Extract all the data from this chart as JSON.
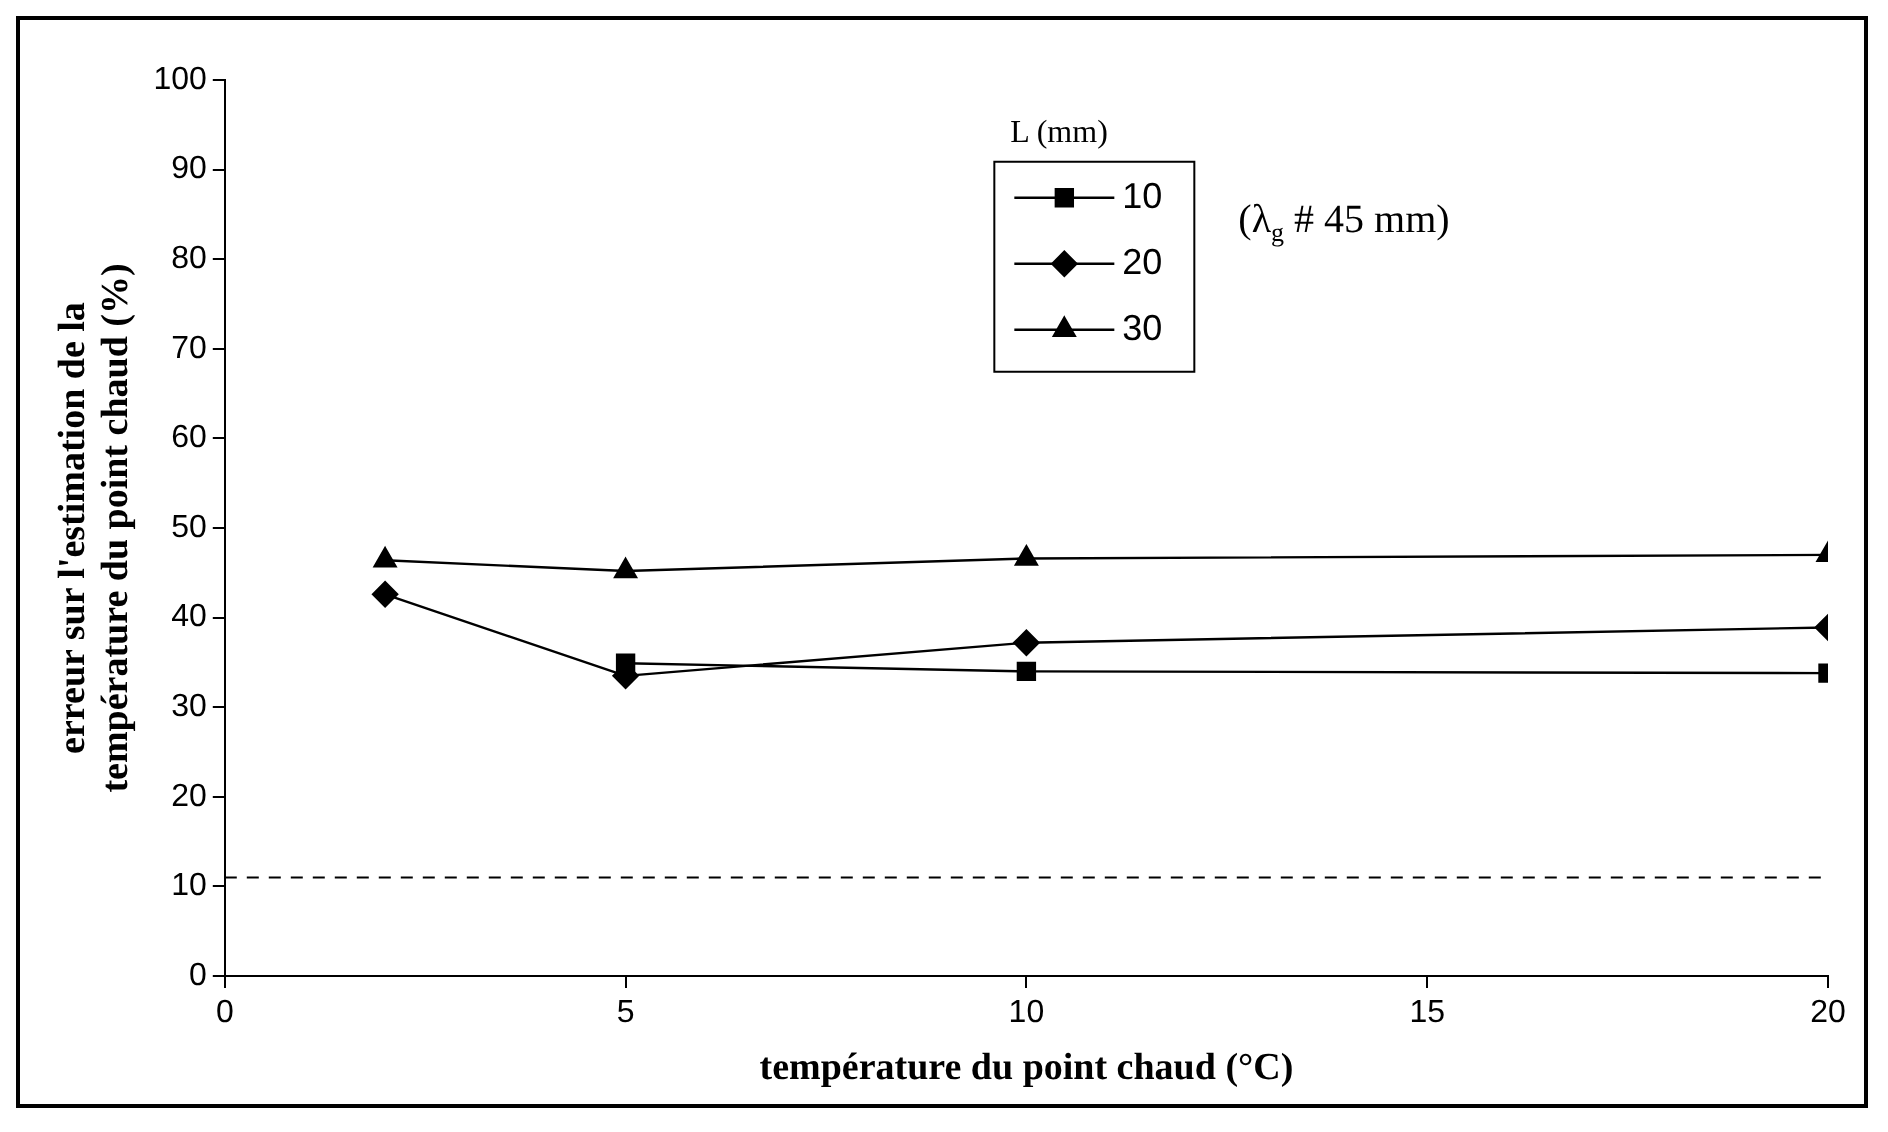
{
  "chart_data": {
    "type": "line",
    "xlabel": "température du point chaud (°C)",
    "ylabel": "erreur sur l'estimation de la température du point chaud (%)",
    "legend_title": "L (mm)",
    "legend": "top",
    "xlim": [
      0,
      20
    ],
    "xticks": [
      0,
      5,
      10,
      15,
      20
    ],
    "ylim": [
      0,
      100
    ],
    "yticks": [
      0,
      10,
      20,
      30,
      40,
      50,
      60,
      70,
      80,
      90,
      100
    ],
    "grid": false,
    "series": [
      {
        "name": "10",
        "color": "#000000",
        "marker": "square",
        "x": [
          5,
          10,
          20
        ],
        "values": [
          34.9,
          34.0,
          33.8
        ]
      },
      {
        "name": "20",
        "color": "#000000",
        "marker": "diamond",
        "x": [
          2,
          5,
          10,
          20
        ],
        "values": [
          42.6,
          33.5,
          37.2,
          38.9
        ]
      },
      {
        "name": "30",
        "color": "#000000",
        "marker": "triangle",
        "x": [
          2,
          5,
          10,
          20
        ],
        "values": [
          46.4,
          45.2,
          46.6,
          47.0
        ]
      }
    ],
    "ref_lines": [
      {
        "axis": "y",
        "value": 11,
        "color": "#000000",
        "line_style": "dashed"
      }
    ],
    "annotations": [
      "(λ$_{g}$ # 45 mm)"
    ]
  }
}
